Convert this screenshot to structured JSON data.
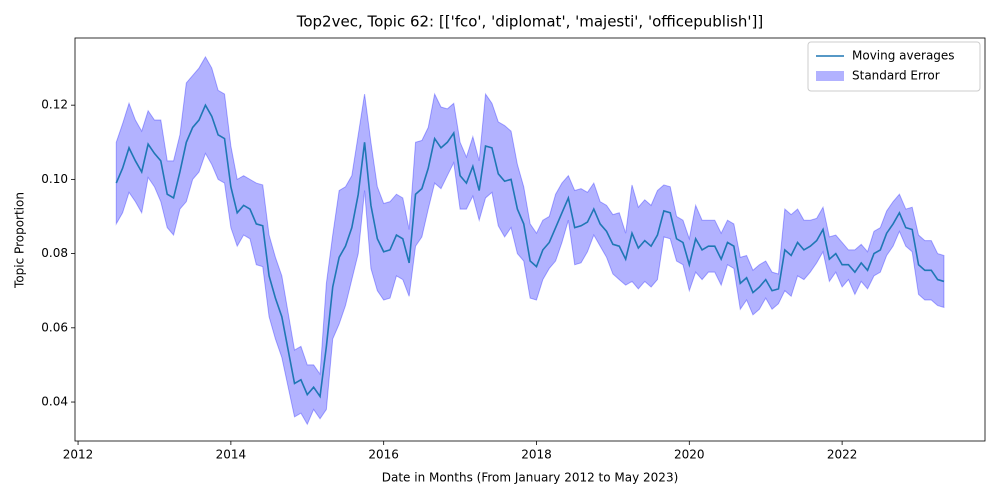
{
  "chart_data": {
    "type": "line",
    "title": "Top2vec, Topic 62: [['fco', 'diplomat', 'majesti', 'officepublish']]",
    "xlabel": "Date in Months (From January 2012 to May 2023)",
    "ylabel": "Topic Proportion",
    "legend": "upper right",
    "x": [
      2012.5,
      2012.583,
      2012.667,
      2012.75,
      2012.833,
      2012.917,
      2013,
      2013.083,
      2013.167,
      2013.25,
      2013.333,
      2013.417,
      2013.5,
      2013.583,
      2013.667,
      2013.75,
      2013.833,
      2013.917,
      2014,
      2014.083,
      2014.167,
      2014.25,
      2014.333,
      2014.417,
      2014.5,
      2014.583,
      2014.667,
      2014.75,
      2014.833,
      2014.917,
      2015,
      2015.083,
      2015.167,
      2015.25,
      2015.333,
      2015.417,
      2015.5,
      2015.583,
      2015.667,
      2015.75,
      2015.833,
      2015.917,
      2016,
      2016.083,
      2016.167,
      2016.25,
      2016.333,
      2016.417,
      2016.5,
      2016.583,
      2016.667,
      2016.75,
      2016.833,
      2016.917,
      2017,
      2017.083,
      2017.167,
      2017.25,
      2017.333,
      2017.417,
      2017.5,
      2017.583,
      2017.667,
      2017.75,
      2017.833,
      2017.917,
      2018,
      2018.083,
      2018.167,
      2018.25,
      2018.333,
      2018.417,
      2018.5,
      2018.583,
      2018.667,
      2018.75,
      2018.833,
      2018.917,
      2019,
      2019.083,
      2019.167,
      2019.25,
      2019.333,
      2019.417,
      2019.5,
      2019.583,
      2019.667,
      2019.75,
      2019.833,
      2019.917,
      2020,
      2020.083,
      2020.167,
      2020.25,
      2020.333,
      2020.417,
      2020.5,
      2020.583,
      2020.667,
      2020.75,
      2020.833,
      2020.917,
      2021,
      2021.083,
      2021.167,
      2021.25,
      2021.333,
      2021.417,
      2021.5,
      2021.583,
      2021.667,
      2021.75,
      2021.833,
      2021.917,
      2022,
      2022.083,
      2022.167,
      2022.25,
      2022.333,
      2022.417,
      2022.5,
      2022.583,
      2022.667,
      2022.75,
      2022.833,
      2022.917,
      2023,
      2023.083,
      2023.167,
      2023.25,
      2023.333
    ],
    "series": [
      {
        "name": "Moving averages",
        "color": "#1f77b4",
        "values": [
          0.099,
          0.103,
          0.1085,
          0.105,
          0.102,
          0.1095,
          0.107,
          0.105,
          0.096,
          0.095,
          0.102,
          0.11,
          0.114,
          0.116,
          0.12,
          0.117,
          0.112,
          0.111,
          0.098,
          0.091,
          0.093,
          0.092,
          0.088,
          0.0875,
          0.074,
          0.068,
          0.063,
          0.054,
          0.045,
          0.046,
          0.042,
          0.044,
          0.0415,
          0.055,
          0.071,
          0.079,
          0.082,
          0.087,
          0.096,
          0.11,
          0.093,
          0.084,
          0.0805,
          0.081,
          0.085,
          0.084,
          0.0775,
          0.096,
          0.0975,
          0.103,
          0.111,
          0.1085,
          0.11,
          0.1125,
          0.101,
          0.099,
          0.1035,
          0.097,
          0.109,
          0.1085,
          0.1015,
          0.0995,
          0.1,
          0.092,
          0.088,
          0.078,
          0.0765,
          0.081,
          0.083,
          0.087,
          0.091,
          0.095,
          0.087,
          0.0875,
          0.0885,
          0.092,
          0.088,
          0.086,
          0.0825,
          0.082,
          0.0785,
          0.0855,
          0.0815,
          0.0835,
          0.082,
          0.085,
          0.0915,
          0.091,
          0.084,
          0.083,
          0.077,
          0.084,
          0.081,
          0.082,
          0.082,
          0.0785,
          0.083,
          0.082,
          0.072,
          0.0735,
          0.0695,
          0.071,
          0.073,
          0.07,
          0.0705,
          0.081,
          0.0795,
          0.083,
          0.081,
          0.082,
          0.0835,
          0.0865,
          0.0785,
          0.08,
          0.077,
          0.077,
          0.075,
          0.0775,
          0.0755,
          0.08,
          0.081,
          0.0855,
          0.088,
          0.091,
          0.087,
          0.0865,
          0.077,
          0.0755,
          0.0755,
          0.073,
          0.0725
        ]
      }
    ],
    "band": {
      "name": "Standard Error",
      "color": "#0000ff",
      "errors": [
        0.011,
        0.012,
        0.012,
        0.011,
        0.011,
        0.009,
        0.009,
        0.011,
        0.009,
        0.01,
        0.01,
        0.016,
        0.014,
        0.014,
        0.013,
        0.013,
        0.012,
        0.012,
        0.011,
        0.009,
        0.008,
        0.008,
        0.011,
        0.011,
        0.011,
        0.011,
        0.011,
        0.01,
        0.009,
        0.009,
        0.008,
        0.006,
        0.006,
        0.017,
        0.014,
        0.018,
        0.016,
        0.014,
        0.016,
        0.013,
        0.017,
        0.014,
        0.013,
        0.013,
        0.011,
        0.011,
        0.009,
        0.014,
        0.013,
        0.011,
        0.012,
        0.011,
        0.009,
        0.008,
        0.009,
        0.007,
        0.008,
        0.008,
        0.014,
        0.012,
        0.014,
        0.015,
        0.013,
        0.012,
        0.01,
        0.01,
        0.009,
        0.008,
        0.007,
        0.009,
        0.008,
        0.006,
        0.01,
        0.01,
        0.008,
        0.007,
        0.006,
        0.007,
        0.008,
        0.009,
        0.007,
        0.013,
        0.011,
        0.011,
        0.011,
        0.012,
        0.007,
        0.007,
        0.006,
        0.006,
        0.007,
        0.009,
        0.008,
        0.007,
        0.007,
        0.007,
        0.006,
        0.006,
        0.007,
        0.006,
        0.006,
        0.006,
        0.005,
        0.005,
        0.004,
        0.011,
        0.011,
        0.009,
        0.008,
        0.007,
        0.006,
        0.006,
        0.006,
        0.005,
        0.006,
        0.004,
        0.006,
        0.005,
        0.005,
        0.006,
        0.006,
        0.006,
        0.006,
        0.005,
        0.005,
        0.006,
        0.008,
        0.008,
        0.008,
        0.007,
        0.007
      ]
    },
    "xlim": [
      2011.96,
      2023.87
    ],
    "ylim": [
      0.0295,
      0.1381
    ],
    "xticks": [
      2012,
      2014,
      2016,
      2018,
      2020,
      2022
    ],
    "yticks": [
      0.04,
      0.06,
      0.08,
      {
        "value": 0.1,
        "label": "0.10"
      },
      0.12
    ]
  }
}
